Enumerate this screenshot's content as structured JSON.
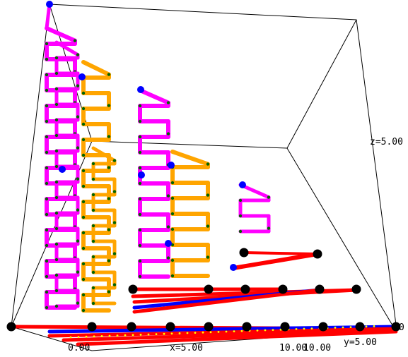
{
  "chart_data": {
    "type": "3d-wireframe",
    "title": "",
    "axes": {
      "x": {
        "ticks": [
          "0.00",
          "x=5.00",
          "10.00"
        ],
        "range": [
          0,
          10
        ]
      },
      "y": {
        "ticks": [
          "10.00",
          "y=5.00",
          "0"
        ],
        "range": [
          0,
          10
        ]
      },
      "z": {
        "ticks": [
          "z=5.00"
        ],
        "range": [
          0,
          10
        ]
      }
    },
    "grid": false,
    "legend": "none",
    "colors": {
      "vertical_path_a": "#ff00ff",
      "vertical_path_b": "#ffa500",
      "base_edge_a": "#ff0000",
      "base_edge_b": "#0000ff",
      "node_large": "#000000",
      "node_top": "#0000ff",
      "node_small": "#006400",
      "edge_mark": "#ffff00"
    },
    "structure": {
      "vertical_columns": 6,
      "base_nodes_front_row": 11,
      "base_nodes_middle_row": 7,
      "base_nodes_back_row": 2
    }
  }
}
